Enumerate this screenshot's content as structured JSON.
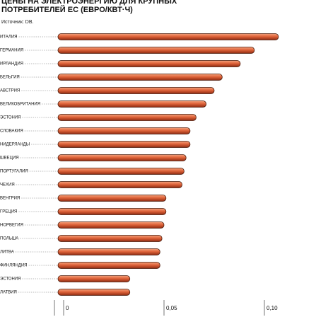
{
  "chart_data": {
    "type": "bar",
    "orientation": "horizontal",
    "title": "Цены на электроэнергию для крупных потребителей ЕС (евро/кВт·ч)",
    "subtitle": "Источник: DB.",
    "categories": [
      "ИТАЛИЯ",
      "ГЕРМАНИЯ",
      "ИРЛАНДИЯ",
      "БЕЛЬГИЯ",
      "АВСТРИЯ",
      "ВЕЛИКОБРИТАНИЯ",
      "ЭСТОНИЯ",
      "СЛОВАКИЯ",
      "НИДЕРЛАНДЫ",
      "ШВЕЦИЯ",
      "ПОРТУГАЛИЯ",
      "ЧЕХИЯ",
      "ВЕНГРИЯ",
      "ГРЕЦИЯ",
      "НОРВЕГИЯ",
      "ПОЛЬША",
      "ЛИТВА",
      "ФИНЛЯНДИЯ",
      "ЭСТОНИЯ",
      "ЛАТВИЯ"
    ],
    "values": [
      0.107,
      0.095,
      0.088,
      0.079,
      0.075,
      0.071,
      0.066,
      0.063,
      0.063,
      0.061,
      0.06,
      0.059,
      0.051,
      0.051,
      0.05,
      0.049,
      0.048,
      0.048,
      0.033,
      0.033
    ],
    "color": "#d9572b",
    "xlim": [
      0,
      0.125
    ],
    "xticks": [
      0,
      {
        "value": 0.05,
        "label": "0,05"
      },
      {
        "value": 0.1,
        "label": "0,10"
      }
    ]
  }
}
